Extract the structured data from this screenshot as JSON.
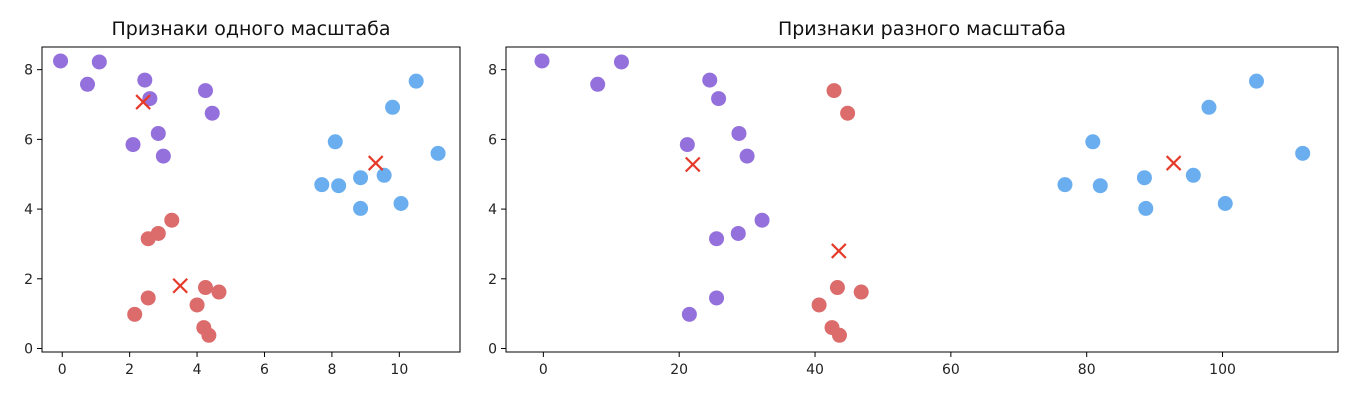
{
  "colors": {
    "purple": "#9370db",
    "red": "#dc6b6b",
    "blue": "#6aaef0",
    "centroid": "#e53a2a"
  },
  "chart_data": [
    {
      "type": "scatter",
      "title": "Признаки одного масштаба",
      "xlabel": "",
      "ylabel": "",
      "xlim": [
        -0.6,
        11.8
      ],
      "ylim": [
        -0.1,
        8.65
      ],
      "xticks": [
        0,
        2,
        4,
        6,
        8,
        10
      ],
      "yticks": [
        0,
        2,
        4,
        6,
        8
      ],
      "grid": false,
      "series": [
        {
          "color": "purple",
          "points": [
            [
              -0.05,
              8.25
            ],
            [
              0.75,
              7.58
            ],
            [
              1.1,
              8.22
            ],
            [
              2.45,
              7.7
            ],
            [
              2.6,
              7.17
            ],
            [
              4.25,
              7.4
            ],
            [
              4.45,
              6.75
            ],
            [
              2.85,
              6.17
            ],
            [
              2.1,
              5.85
            ],
            [
              3.0,
              5.52
            ]
          ]
        },
        {
          "color": "red",
          "points": [
            [
              3.25,
              3.68
            ],
            [
              2.85,
              3.3
            ],
            [
              2.55,
              3.15
            ],
            [
              4.25,
              1.75
            ],
            [
              4.65,
              1.62
            ],
            [
              2.55,
              1.45
            ],
            [
              4.0,
              1.25
            ],
            [
              2.15,
              0.98
            ],
            [
              4.2,
              0.6
            ],
            [
              4.35,
              0.38
            ]
          ]
        },
        {
          "color": "blue",
          "points": [
            [
              10.5,
              7.67
            ],
            [
              9.8,
              6.92
            ],
            [
              8.1,
              5.93
            ],
            [
              11.15,
              5.6
            ],
            [
              9.55,
              4.97
            ],
            [
              8.85,
              4.9
            ],
            [
              7.7,
              4.7
            ],
            [
              8.2,
              4.67
            ],
            [
              10.05,
              4.16
            ],
            [
              8.85,
              4.02
            ]
          ]
        }
      ],
      "centroids": [
        [
          2.4,
          7.07
        ],
        [
          3.5,
          1.8
        ],
        [
          9.3,
          5.32
        ]
      ]
    },
    {
      "type": "scatter",
      "title": "Признаки разного масштаба",
      "xlabel": "",
      "ylabel": "",
      "xlim": [
        -5.5,
        117
      ],
      "ylim": [
        -0.1,
        8.65
      ],
      "xticks": [
        0,
        20,
        40,
        60,
        80,
        100
      ],
      "yticks": [
        0,
        2,
        4,
        6,
        8
      ],
      "grid": false,
      "series": [
        {
          "color": "purple",
          "points": [
            [
              -0.2,
              8.25
            ],
            [
              8,
              7.58
            ],
            [
              11.5,
              8.22
            ],
            [
              24.5,
              7.7
            ],
            [
              25.8,
              7.17
            ],
            [
              28.8,
              6.17
            ],
            [
              21.2,
              5.85
            ],
            [
              30,
              5.52
            ],
            [
              32.2,
              3.68
            ],
            [
              28.7,
              3.3
            ],
            [
              25.5,
              3.15
            ],
            [
              25.5,
              1.45
            ],
            [
              21.5,
              0.98
            ]
          ]
        },
        {
          "color": "red",
          "points": [
            [
              42.8,
              7.4
            ],
            [
              44.8,
              6.75
            ],
            [
              43.3,
              1.75
            ],
            [
              46.8,
              1.62
            ],
            [
              40.6,
              1.25
            ],
            [
              42.5,
              0.6
            ],
            [
              43.6,
              0.38
            ]
          ]
        },
        {
          "color": "blue",
          "points": [
            [
              105,
              7.67
            ],
            [
              98,
              6.92
            ],
            [
              80.9,
              5.93
            ],
            [
              111.8,
              5.6
            ],
            [
              95.7,
              4.97
            ],
            [
              88.5,
              4.9
            ],
            [
              76.8,
              4.7
            ],
            [
              82,
              4.67
            ],
            [
              100.4,
              4.16
            ],
            [
              88.7,
              4.02
            ]
          ]
        }
      ],
      "centroids": [
        [
          22,
          5.28
        ],
        [
          43.5,
          2.8
        ],
        [
          92.8,
          5.32
        ]
      ]
    }
  ]
}
